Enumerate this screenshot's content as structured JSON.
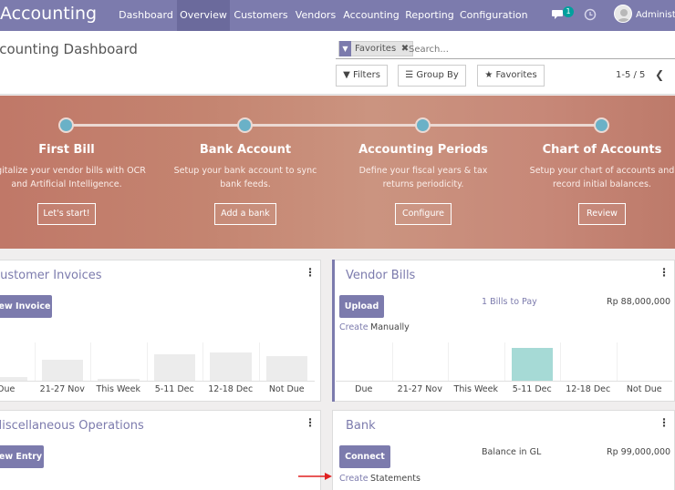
{
  "app": {
    "title": "Accounting",
    "user": "Administrator",
    "chat_count": "1"
  },
  "menu": [
    {
      "label": "Dashboard"
    },
    {
      "label": "Overview"
    },
    {
      "label": "Customers"
    },
    {
      "label": "Vendors"
    },
    {
      "label": "Accounting"
    },
    {
      "label": "Reporting"
    },
    {
      "label": "Configuration"
    }
  ],
  "control_panel": {
    "title": "Accounting Dashboard",
    "facet": "Favorites",
    "search_placeholder": "Search...",
    "filters": "Filters",
    "group_by": "Group By",
    "favorites": "Favorites",
    "pager": "1-5 / 5"
  },
  "onboarding": [
    {
      "title": "First Bill",
      "desc": "Digitalize your vendor bills with OCR and Artificial Intelligence.",
      "button": "Let's start!"
    },
    {
      "title": "Bank Account",
      "desc": "Setup your bank account to sync bank feeds.",
      "button": "Add a bank"
    },
    {
      "title": "Accounting Periods",
      "desc": "Define your fiscal years & tax returns periodicity.",
      "button": "Configure"
    },
    {
      "title": "Chart of Accounts",
      "desc": "Setup your chart of accounts and record initial balances.",
      "button": "Review"
    }
  ],
  "customer_invoices": {
    "title": "Customer Invoices",
    "new_button": "New Invoice",
    "chart_labels": [
      "Due",
      "21-27 Nov",
      "This Week",
      "5-11 Dec",
      "12-18 Dec",
      "Not Due"
    ],
    "chart_values": [
      0.1,
      0.65,
      0.05,
      0.8,
      0.85,
      0.75
    ]
  },
  "vendor_bills": {
    "title": "Vendor Bills",
    "upload_button": "Upload",
    "bills_to_pay": "1 Bills to Pay",
    "amount": "Rp 88,000,000",
    "create_link": "Create",
    "create_rest": "Manually",
    "chart_labels": [
      "Due",
      "21-27 Nov",
      "This Week",
      "5-11 Dec",
      "12-18 Dec",
      "Not Due"
    ],
    "chart_values": [
      0,
      0,
      0,
      1,
      0,
      0
    ]
  },
  "misc_operations": {
    "title": "Miscellaneous Operations",
    "new_button": "New Entry"
  },
  "bank": {
    "title": "Bank",
    "connect_button": "Connect",
    "balance_label": "Balance in GL",
    "amount": "Rp 99,000,000",
    "create_link": "Create",
    "create_rest": "Statements"
  },
  "colors": {
    "brand": "#7c7bad",
    "banner": "#c48470",
    "step_dot": "#6ab1c7",
    "highlight_bar": "#a6dad6",
    "annotation_arrow": "#e02020"
  }
}
